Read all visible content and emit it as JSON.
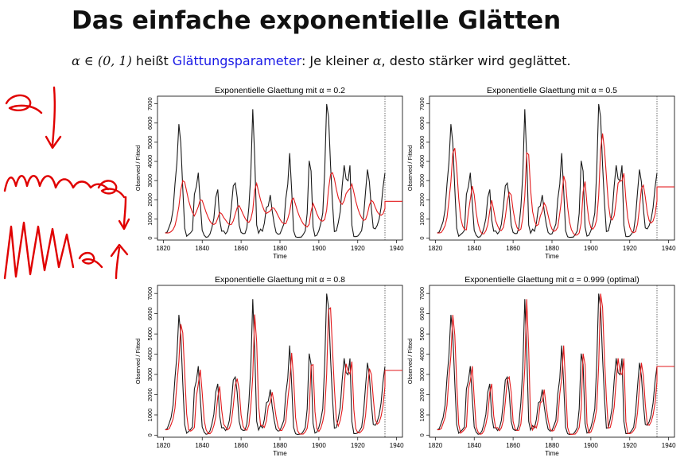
{
  "slide": {
    "title": "Das einfache exponentielle Glätten",
    "subtitle": {
      "math_prefix": "α ∈ (0, 1)",
      "text1": " heißt ",
      "link": "Glättungsparameter",
      "text2": ": Je kleiner ",
      "math_alpha": "α",
      "text3": ", desto stärker wird geglättet."
    }
  },
  "colors": {
    "observed": "#1a1a1a",
    "fitted": "#e31a1c",
    "link": "#1a1ae6",
    "ink": "#e00000"
  },
  "chart_data": [
    {
      "type": "line",
      "title": "Exponentielle Glaettung mit α = 0.2",
      "alpha": 0.2,
      "xlabel": "Time",
      "ylabel": "Observed / Fitted",
      "xlim": [
        1817,
        1943
      ],
      "ylim": [
        -100,
        7400
      ],
      "xticks": [
        1820,
        1840,
        1860,
        1880,
        1900,
        1920,
        1940
      ],
      "yticks": [
        0,
        1000,
        2000,
        3000,
        4000,
        5000,
        6000,
        7000
      ],
      "series": [
        {
          "role": "observed"
        },
        {
          "role": "fitted"
        }
      ]
    },
    {
      "type": "line",
      "title": "Exponentielle Glaettung mit α = 0.5",
      "alpha": 0.5,
      "xlabel": "Time",
      "ylabel": "Observed / Fitted",
      "xlim": [
        1817,
        1943
      ],
      "ylim": [
        -100,
        7400
      ],
      "xticks": [
        1820,
        1840,
        1860,
        1880,
        1900,
        1920,
        1940
      ],
      "yticks": [
        0,
        1000,
        2000,
        3000,
        4000,
        5000,
        6000,
        7000
      ],
      "series": [
        {
          "role": "observed"
        },
        {
          "role": "fitted"
        }
      ]
    },
    {
      "type": "line",
      "title": "Exponentielle Glaettung mit α = 0.8",
      "alpha": 0.8,
      "xlabel": "Time",
      "ylabel": "Observed / Fitted",
      "xlim": [
        1817,
        1943
      ],
      "ylim": [
        -100,
        7400
      ],
      "xticks": [
        1820,
        1840,
        1860,
        1880,
        1900,
        1920,
        1940
      ],
      "yticks": [
        0,
        1000,
        2000,
        3000,
        4000,
        5000,
        6000,
        7000
      ],
      "series": [
        {
          "role": "observed"
        },
        {
          "role": "fitted"
        }
      ]
    },
    {
      "type": "line",
      "title": "Exponentielle Glaettung mit α = 0.999 (optimal)",
      "alpha": 0.999,
      "xlabel": "Time",
      "ylabel": "Observed / Fitted",
      "xlim": [
        1817,
        1943
      ],
      "ylim": [
        -100,
        7400
      ],
      "xticks": [
        1820,
        1840,
        1860,
        1880,
        1900,
        1920,
        1940
      ],
      "yticks": [
        0,
        1000,
        2000,
        3000,
        4000,
        5000,
        6000,
        7000
      ],
      "series": [
        {
          "role": "observed"
        },
        {
          "role": "fitted"
        }
      ]
    }
  ],
  "observed_series": {
    "x": [
      1821,
      1822,
      1823,
      1824,
      1825,
      1826,
      1827,
      1828,
      1829,
      1830,
      1831,
      1832,
      1833,
      1834,
      1835,
      1836,
      1837,
      1838,
      1839,
      1840,
      1841,
      1842,
      1843,
      1844,
      1845,
      1846,
      1847,
      1848,
      1849,
      1850,
      1851,
      1852,
      1853,
      1854,
      1855,
      1856,
      1857,
      1858,
      1859,
      1860,
      1861,
      1862,
      1863,
      1864,
      1865,
      1866,
      1867,
      1868,
      1869,
      1870,
      1871,
      1872,
      1873,
      1874,
      1875,
      1876,
      1877,
      1878,
      1879,
      1880,
      1881,
      1882,
      1883,
      1884,
      1885,
      1886,
      1887,
      1888,
      1889,
      1890,
      1891,
      1892,
      1893,
      1894,
      1895,
      1896,
      1897,
      1898,
      1899,
      1900,
      1901,
      1902,
      1903,
      1904,
      1905,
      1906,
      1907,
      1908,
      1909,
      1910,
      1911,
      1912,
      1913,
      1914,
      1915,
      1916,
      1917,
      1918,
      1919,
      1920,
      1921,
      1922,
      1923,
      1924,
      1925,
      1926,
      1927,
      1928,
      1929,
      1930,
      1931,
      1932,
      1933,
      1934
    ],
    "y": [
      269,
      321,
      585,
      871,
      1475,
      2821,
      3928,
      5943,
      4950,
      2577,
      523,
      98,
      184,
      279,
      409,
      2285,
      2685,
      3409,
      1824,
      409,
      151,
      45,
      68,
      213,
      546,
      1033,
      2129,
      2536,
      957,
      361,
      377,
      225,
      360,
      731,
      1638,
      2725,
      2871,
      2119,
      684,
      299,
      236,
      245,
      552,
      1623,
      3311,
      6721,
      4254,
      687,
      255,
      473,
      358,
      784,
      1594,
      1676,
      2251,
      1426,
      756,
      299,
      201,
      229,
      469,
      736,
      2042,
      2811,
      4431,
      2511,
      389,
      73,
      39,
      49,
      59,
      188,
      377,
      1292,
      4031,
      3495,
      587,
      105,
      153,
      387,
      758,
      1307,
      3465,
      6991,
      6313,
      3794,
      1836,
      345,
      382,
      808,
      1388,
      2713,
      3800,
      3091,
      2985,
      3790,
      674,
      81,
      80,
      108,
      229,
      399,
      1132,
      2432,
      3574,
      2935,
      1537,
      529,
      485,
      662,
      1000,
      1590,
      2657,
      3396
    ]
  },
  "annotation_ink": {
    "alpha_symbol": "α",
    "math_symbol": "α",
    "label": "α"
  }
}
